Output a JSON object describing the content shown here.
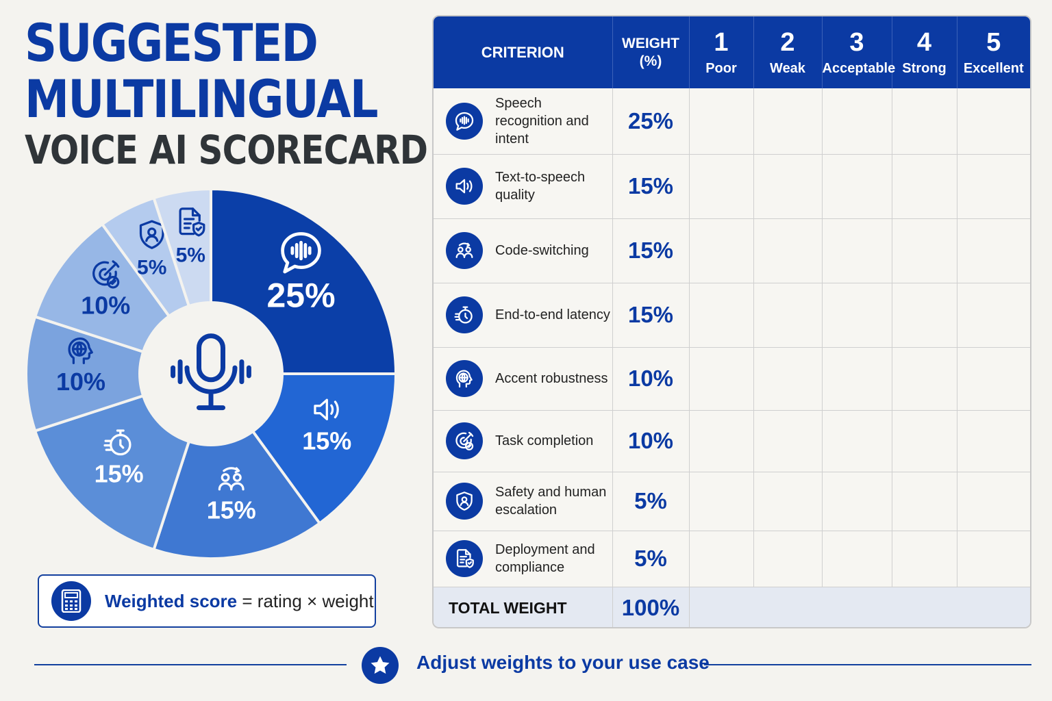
{
  "title": {
    "line1": "SUGGESTED",
    "line2": "MULTILINGUAL",
    "line3": "VOICE AI SCORECARD"
  },
  "chart_data": {
    "type": "pie",
    "slices": [
      {
        "label": "Speech recognition and intent",
        "value": 25,
        "display": "25%",
        "icon": "speech-bubble-waveform-icon",
        "color": "#0b3fa8"
      },
      {
        "label": "Text-to-speech quality",
        "value": 15,
        "display": "15%",
        "icon": "speaker-icon",
        "color": "#2266d4"
      },
      {
        "label": "Code-switching",
        "value": 15,
        "display": "15%",
        "icon": "people-switch-icon",
        "color": "#3f78d2"
      },
      {
        "label": "End-to-end latency",
        "value": 15,
        "display": "15%",
        "icon": "stopwatch-icon",
        "color": "#5b8ed8"
      },
      {
        "label": "Accent robustness",
        "value": 10,
        "display": "10%",
        "icon": "globe-head-icon",
        "color": "#7ba3de"
      },
      {
        "label": "Task completion",
        "value": 10,
        "display": "10%",
        "icon": "target-check-icon",
        "color": "#97b7e6"
      },
      {
        "label": "Safety and human escalation",
        "value": 5,
        "display": "5%",
        "icon": "shield-person-icon",
        "color": "#b4cbee"
      },
      {
        "label": "Deployment and compliance",
        "value": 5,
        "display": "5%",
        "icon": "document-shield-icon",
        "color": "#ccdaf1"
      }
    ],
    "center_icon": "microphone-icon"
  },
  "formula": {
    "lhs": "Weighted score",
    "op": "=",
    "rhs": "rating × weight"
  },
  "table": {
    "headers": {
      "criterion": "CRITERION",
      "weight_line1": "WEIGHT",
      "weight_line2": "(%)",
      "ratings": [
        {
          "num": "1",
          "label": "Poor"
        },
        {
          "num": "2",
          "label": "Weak"
        },
        {
          "num": "3",
          "label": "Acceptable"
        },
        {
          "num": "4",
          "label": "Strong"
        },
        {
          "num": "5",
          "label": "Excellent"
        }
      ]
    },
    "rows": [
      {
        "criterion": "Speech recognition and intent",
        "weight": "25%",
        "icon": "speech-bubble-waveform-icon"
      },
      {
        "criterion": "Text-to-speech quality",
        "weight": "15%",
        "icon": "speaker-icon"
      },
      {
        "criterion": "Code-switching",
        "weight": "15%",
        "icon": "people-switch-icon"
      },
      {
        "criterion": "End-to-end latency",
        "weight": "15%",
        "icon": "stopwatch-icon"
      },
      {
        "criterion": "Accent robustness",
        "weight": "10%",
        "icon": "globe-head-icon"
      },
      {
        "criterion": "Task completion",
        "weight": "10%",
        "icon": "target-check-icon"
      },
      {
        "criterion": "Safety and human escalation",
        "weight": "5%",
        "icon": "shield-person-icon"
      },
      {
        "criterion": "Deployment and compliance",
        "weight": "5%",
        "icon": "document-shield-icon"
      }
    ],
    "total": {
      "label": "TOTAL WEIGHT",
      "weight": "100%"
    }
  },
  "footer": {
    "text": "Adjust weights to your use case",
    "icon": "star-icon"
  },
  "colors": {
    "primary": "#0b3aa3",
    "background": "#f4f3ef"
  }
}
